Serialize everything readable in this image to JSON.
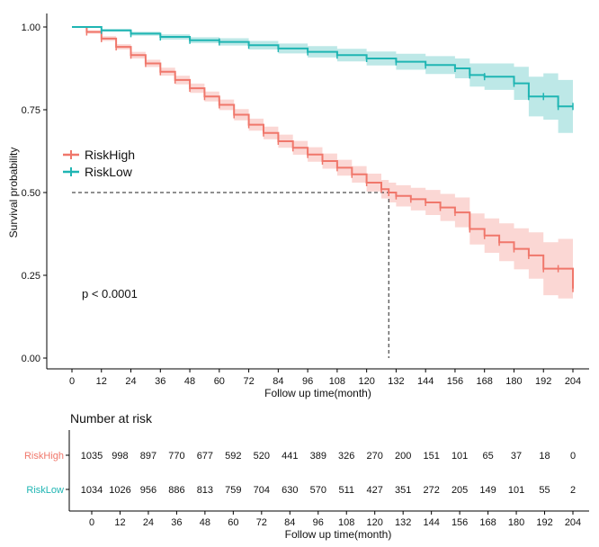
{
  "chart_data": {
    "type": "line",
    "subtype": "kaplan-meier",
    "xlabel": "Follow up time(month)",
    "ylabel": "Survival probability",
    "x_ticks": [
      0,
      12,
      24,
      36,
      48,
      60,
      72,
      84,
      96,
      108,
      120,
      132,
      144,
      156,
      168,
      180,
      192,
      204
    ],
    "y_ticks": [
      "0.00",
      "0.25",
      "0.50",
      "0.75",
      "1.00"
    ],
    "xlim": [
      0,
      204
    ],
    "ylim": [
      0,
      1
    ],
    "pvalue_text": "p < 0.0001",
    "legend_position": "left-middle",
    "median_survival": {
      "series": "RiskHigh",
      "x": 129,
      "y": 0.5
    },
    "series": [
      {
        "name": "RiskHigh",
        "color": "#f0776b",
        "band_color": "#f7b7b0",
        "x": [
          0,
          6,
          12,
          18,
          24,
          30,
          36,
          42,
          48,
          54,
          60,
          66,
          72,
          78,
          84,
          90,
          96,
          102,
          108,
          114,
          120,
          126,
          129,
          132,
          138,
          144,
          150,
          156,
          162,
          168,
          174,
          180,
          186,
          192,
          198,
          204
        ],
        "y": [
          1.0,
          0.985,
          0.965,
          0.94,
          0.915,
          0.89,
          0.865,
          0.84,
          0.815,
          0.79,
          0.765,
          0.735,
          0.705,
          0.68,
          0.655,
          0.635,
          0.615,
          0.595,
          0.575,
          0.555,
          0.53,
          0.51,
          0.5,
          0.49,
          0.48,
          0.47,
          0.455,
          0.44,
          0.39,
          0.37,
          0.35,
          0.33,
          0.31,
          0.27,
          0.27,
          0.21
        ],
        "lower": [
          1.0,
          0.98,
          0.958,
          0.932,
          0.905,
          0.879,
          0.853,
          0.827,
          0.801,
          0.775,
          0.749,
          0.718,
          0.687,
          0.661,
          0.635,
          0.614,
          0.593,
          0.572,
          0.551,
          0.53,
          0.503,
          0.482,
          0.47,
          0.458,
          0.446,
          0.432,
          0.414,
          0.395,
          0.343,
          0.318,
          0.293,
          0.268,
          0.24,
          0.19,
          0.18,
          0.13
        ],
        "upper": [
          1.0,
          0.99,
          0.972,
          0.948,
          0.925,
          0.901,
          0.877,
          0.853,
          0.829,
          0.805,
          0.781,
          0.752,
          0.723,
          0.699,
          0.675,
          0.656,
          0.637,
          0.618,
          0.599,
          0.58,
          0.557,
          0.538,
          0.53,
          0.522,
          0.514,
          0.508,
          0.496,
          0.485,
          0.437,
          0.422,
          0.407,
          0.392,
          0.38,
          0.35,
          0.36,
          0.33
        ]
      },
      {
        "name": "RiskLow",
        "color": "#1fb5b3",
        "band_color": "#86d6d4",
        "x": [
          0,
          12,
          24,
          36,
          48,
          60,
          72,
          84,
          96,
          108,
          120,
          132,
          144,
          156,
          162,
          168,
          180,
          186,
          192,
          198,
          204
        ],
        "y": [
          1.0,
          0.99,
          0.98,
          0.97,
          0.96,
          0.955,
          0.945,
          0.935,
          0.925,
          0.915,
          0.905,
          0.895,
          0.885,
          0.875,
          0.855,
          0.85,
          0.83,
          0.79,
          0.79,
          0.76,
          0.76
        ],
        "lower": [
          1.0,
          0.986,
          0.974,
          0.962,
          0.951,
          0.944,
          0.932,
          0.92,
          0.908,
          0.896,
          0.884,
          0.871,
          0.858,
          0.845,
          0.82,
          0.81,
          0.78,
          0.73,
          0.72,
          0.68,
          0.68
        ],
        "upper": [
          1.0,
          0.994,
          0.986,
          0.978,
          0.969,
          0.966,
          0.958,
          0.95,
          0.942,
          0.934,
          0.926,
          0.919,
          0.912,
          0.905,
          0.89,
          0.89,
          0.88,
          0.85,
          0.86,
          0.84,
          0.84
        ]
      }
    ],
    "risk_table": {
      "title": "Number at risk",
      "xlabel": "Follow up time(month)",
      "x_ticks": [
        0,
        12,
        24,
        36,
        48,
        60,
        72,
        84,
        96,
        108,
        120,
        132,
        144,
        156,
        168,
        180,
        192,
        204
      ],
      "rows": [
        {
          "name": "RiskHigh",
          "color": "#f0776b",
          "values": [
            "1035",
            "998",
            "897",
            "770",
            "677",
            "592",
            "520",
            "441",
            "389",
            "326",
            "270",
            "200",
            "151",
            "101",
            "65",
            "37",
            "18",
            "0"
          ]
        },
        {
          "name": "RiskLow",
          "color": "#1fb5b3",
          "values": [
            "1034",
            "1026",
            "956",
            "886",
            "813",
            "759",
            "704",
            "630",
            "570",
            "511",
            "427",
            "351",
            "272",
            "205",
            "149",
            "101",
            "55",
            "2"
          ]
        }
      ]
    }
  }
}
